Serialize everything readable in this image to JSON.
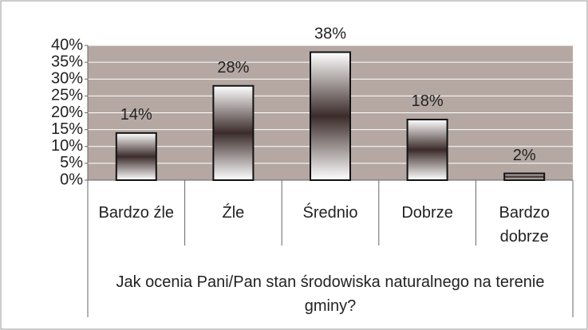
{
  "chart_data": {
    "type": "bar",
    "categories": [
      "Bardzo źle",
      "Źle",
      "Średnio",
      "Dobrze",
      "Bardzo dobrze"
    ],
    "values": [
      14,
      28,
      38,
      18,
      2
    ],
    "value_labels": [
      "14%",
      "28%",
      "38%",
      "18%",
      "2%"
    ],
    "x_label": "Jak ocenia Pani/Pan stan środowiska naturalnego na terenie gminy?",
    "ylim": [
      0,
      40
    ],
    "yticks": [
      {
        "value": 0,
        "label": "0%"
      },
      {
        "value": 5,
        "label": "5%"
      },
      {
        "value": 10,
        "label": "10%"
      },
      {
        "value": 15,
        "label": "15%"
      },
      {
        "value": 20,
        "label": "20%"
      },
      {
        "value": 25,
        "label": "25%"
      },
      {
        "value": 30,
        "label": "30%"
      },
      {
        "value": 35,
        "label": "35%"
      },
      {
        "value": 40,
        "label": "40%"
      }
    ],
    "grid": true,
    "plot_background": "#b5a8a3"
  }
}
